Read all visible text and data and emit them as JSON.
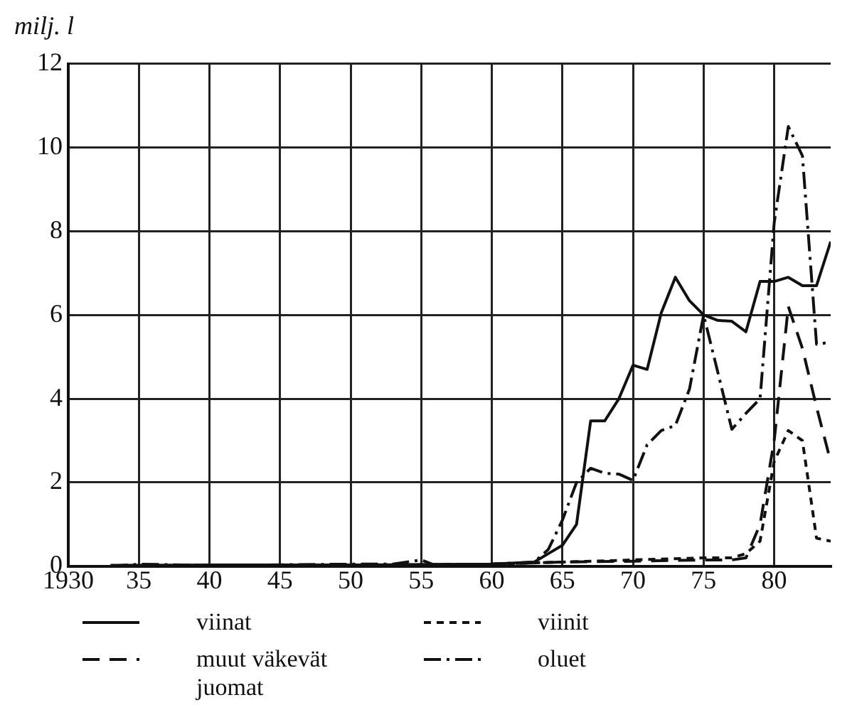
{
  "chart_data": {
    "type": "line",
    "ylabel": "milj. l",
    "xlim": [
      1930,
      1984
    ],
    "ylim": [
      0,
      12
    ],
    "xticks": [
      {
        "value": 1930,
        "label": "1930"
      },
      {
        "value": 1935,
        "label": "35"
      },
      {
        "value": 1940,
        "label": "40"
      },
      {
        "value": 1945,
        "label": "45"
      },
      {
        "value": 1950,
        "label": "50"
      },
      {
        "value": 1955,
        "label": "55"
      },
      {
        "value": 1960,
        "label": "60"
      },
      {
        "value": 1965,
        "label": "65"
      },
      {
        "value": 1970,
        "label": "70"
      },
      {
        "value": 1975,
        "label": "75"
      },
      {
        "value": 1980,
        "label": "80"
      }
    ],
    "yticks": [
      0,
      2,
      4,
      6,
      8,
      10,
      12
    ],
    "grid": true,
    "legend": "bottom",
    "marker": "none",
    "series": [
      {
        "name": "viinat",
        "color": "#111111",
        "line_style": "solid",
        "x": [
          1933,
          1940,
          1950,
          1960,
          1963,
          1964,
          1965,
          1966,
          1967,
          1968,
          1969,
          1970,
          1971,
          1972,
          1973,
          1974,
          1975,
          1976,
          1977,
          1978,
          1979,
          1980,
          1981,
          1982,
          1983,
          1984
        ],
        "values": [
          0.02,
          0.03,
          0.03,
          0.05,
          0.1,
          0.3,
          0.5,
          1.0,
          3.47,
          3.47,
          4.0,
          4.8,
          4.7,
          6.05,
          6.9,
          6.34,
          6.0,
          5.87,
          5.85,
          5.6,
          6.8,
          6.8,
          6.9,
          6.7,
          6.7,
          7.75
        ]
      },
      {
        "name": "viinit",
        "color": "#111111",
        "line_style": "dotted",
        "x": [
          1933,
          1950,
          1960,
          1965,
          1970,
          1975,
          1977,
          1978,
          1979,
          1980,
          1981,
          1982,
          1983,
          1984
        ],
        "values": [
          0,
          0.02,
          0.05,
          0.1,
          0.15,
          0.2,
          0.2,
          0.3,
          0.6,
          2.5,
          3.24,
          3.0,
          0.67,
          0.6
        ]
      },
      {
        "name": "muut väkevät juomat",
        "color": "#111111",
        "line_style": "dashed",
        "x": [
          1933,
          1950,
          1960,
          1965,
          1970,
          1975,
          1977,
          1978,
          1979,
          1980,
          1981,
          1982,
          1983,
          1984
        ],
        "values": [
          0,
          0.02,
          0.05,
          0.1,
          0.12,
          0.15,
          0.15,
          0.2,
          1.0,
          3.0,
          6.2,
          5.2,
          3.8,
          2.5
        ]
      },
      {
        "name": "oluet",
        "color": "#111111",
        "line_style": "dashdot",
        "x": [
          1933,
          1935,
          1940,
          1950,
          1953,
          1955,
          1956,
          1960,
          1963,
          1964,
          1965,
          1966,
          1967,
          1968,
          1969,
          1970,
          1971,
          1972,
          1973,
          1974,
          1975,
          1976,
          1977,
          1978,
          1979,
          1980,
          1981,
          1982,
          1983,
          1984
        ],
        "values": [
          0,
          0.05,
          0.02,
          0.05,
          0.05,
          0.15,
          0.02,
          0.05,
          0.1,
          0.4,
          1.1,
          2.0,
          2.34,
          2.22,
          2.2,
          2.05,
          2.9,
          3.24,
          3.36,
          4.23,
          6.0,
          4.64,
          3.27,
          3.65,
          4.0,
          8.2,
          10.5,
          9.8,
          5.3,
          5.35
        ]
      }
    ]
  }
}
